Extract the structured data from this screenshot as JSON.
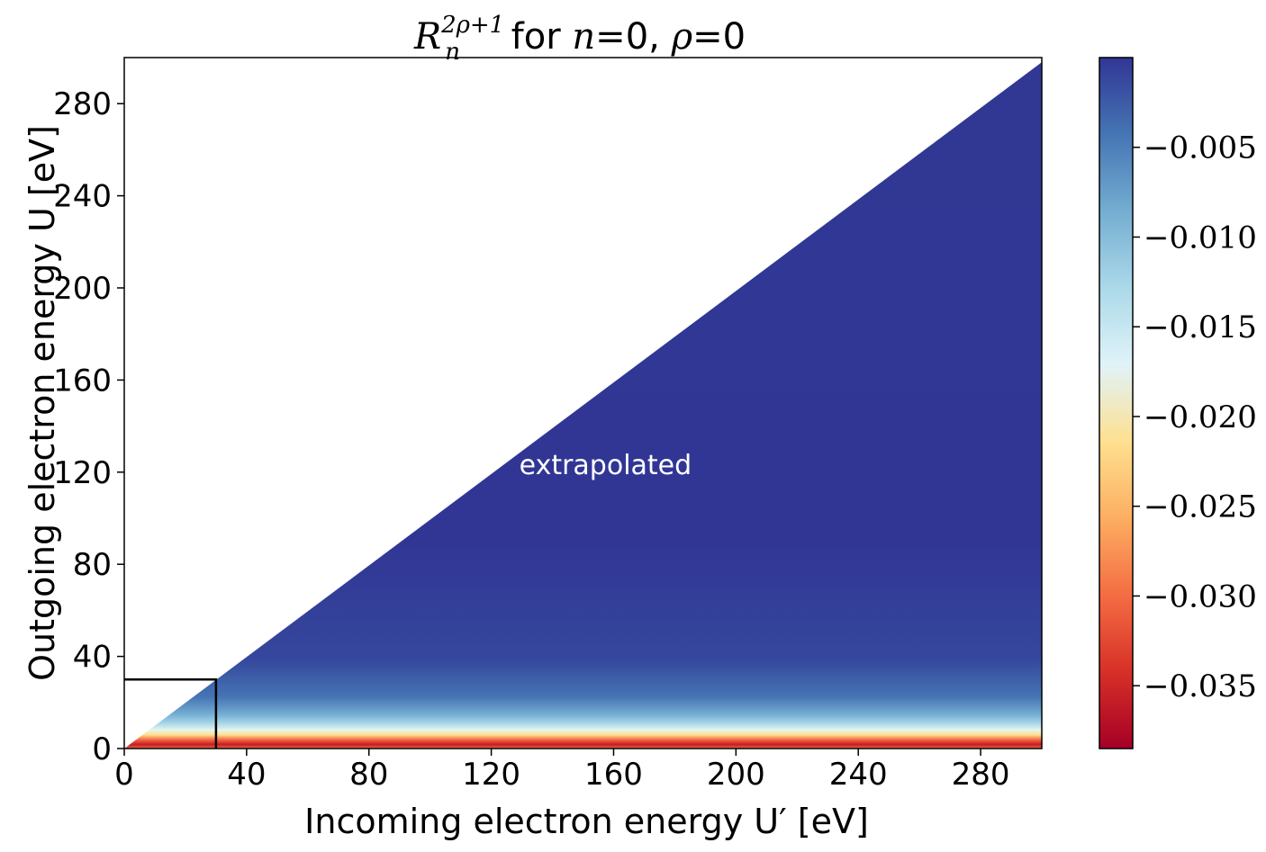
{
  "chart_data": {
    "type": "heatmap",
    "title": {
      "symbol": "R",
      "superscript": "2ρ+1",
      "subscript": "n",
      "mid": " for ",
      "n_var": "n",
      "n_val": "=0, ",
      "rho_var": "ρ",
      "rho_val": "=0"
    },
    "xlabel": "Incoming electron energy U′ [eV]",
    "ylabel": "Outgoing electron energy U [eV]",
    "xlim": [
      0,
      300
    ],
    "ylim": [
      0,
      300
    ],
    "x_ticks": [
      0,
      40,
      80,
      120,
      160,
      200,
      240,
      280
    ],
    "y_ticks": [
      0,
      40,
      80,
      120,
      160,
      200,
      240,
      280
    ],
    "domain": "U <= U′ (lower-right triangle filled)",
    "colormap": "RdYlBu",
    "colorbar": {
      "range": [
        -0.0385,
        0.0
      ],
      "ticks": [
        -0.005,
        -0.01,
        -0.015,
        -0.02,
        -0.025,
        -0.03,
        -0.035
      ],
      "tick_labels": [
        "−0.005",
        "−0.010",
        "−0.015",
        "−0.020",
        "−0.025",
        "−0.030",
        "−0.035"
      ],
      "colors": [
        "#a50026",
        "#d73027",
        "#f46d43",
        "#fdae61",
        "#fee090",
        "#e0f3f8",
        "#abd9e9",
        "#74add1",
        "#4575b4",
        "#313695"
      ]
    },
    "annotation": {
      "text": "extrapolated",
      "x": 175,
      "y": 120
    },
    "highlight_box": {
      "x": [
        0,
        30
      ],
      "y": [
        0,
        30
      ]
    },
    "value_profile": "minimum near U≈0 (about −0.038), rising to about 0 for U above ~40 eV"
  }
}
